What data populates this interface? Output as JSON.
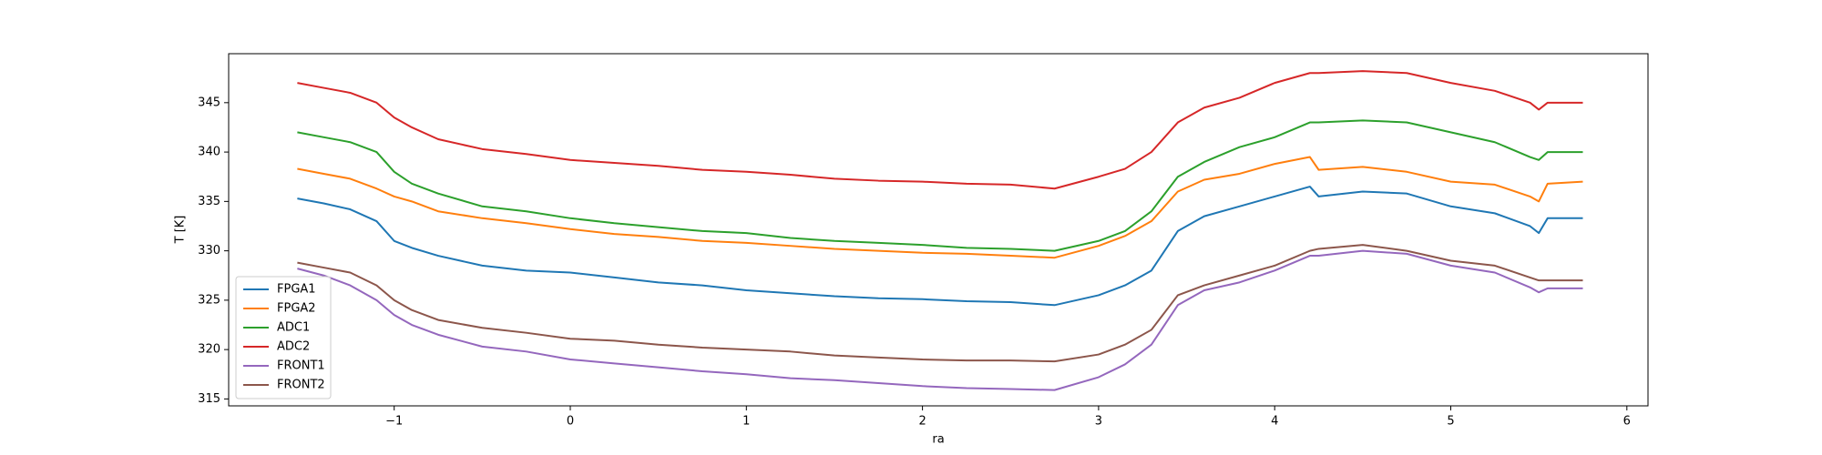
{
  "chart_data": {
    "type": "line",
    "xlabel": "ra",
    "ylabel": "T [K]",
    "x": [
      -1.55,
      -1.4,
      -1.25,
      -1.1,
      -1.0,
      -0.9,
      -0.75,
      -0.5,
      -0.25,
      0,
      0.25,
      0.5,
      0.75,
      1,
      1.25,
      1.5,
      1.75,
      2,
      2.25,
      2.5,
      2.75,
      3,
      3.15,
      3.3,
      3.45,
      3.6,
      3.8,
      4,
      4.2,
      4.25,
      4.5,
      4.75,
      5,
      5.25,
      5.45,
      5.5,
      5.55,
      5.75
    ],
    "series": [
      {
        "name": "FPGA1",
        "color": "#1f77b4",
        "values": [
          335.3,
          334.8,
          334.2,
          333,
          331,
          330.3,
          329.5,
          328.5,
          328,
          327.8,
          327.3,
          326.8,
          326.5,
          326,
          325.7,
          325.4,
          325.2,
          325.1,
          324.9,
          324.8,
          324.5,
          325.5,
          326.5,
          328,
          332,
          333.5,
          334.5,
          335.5,
          336.5,
          335.5,
          336,
          335.8,
          334.5,
          333.8,
          332.5,
          331.8,
          333.3,
          333.3
        ]
      },
      {
        "name": "FPGA2",
        "color": "#ff7f0e",
        "values": [
          338.3,
          337.8,
          337.3,
          336.3,
          335.5,
          335,
          334,
          333.3,
          332.8,
          332.2,
          331.7,
          331.4,
          331,
          330.8,
          330.5,
          330.2,
          330,
          329.8,
          329.7,
          329.5,
          329.3,
          330.5,
          331.5,
          333,
          336,
          337.2,
          337.8,
          338.8,
          339.5,
          338.2,
          338.5,
          338,
          337,
          336.7,
          335.5,
          335,
          336.8,
          337
        ]
      },
      {
        "name": "ADC1",
        "color": "#2ca02c",
        "values": [
          342,
          341.5,
          341,
          340,
          338,
          336.8,
          335.8,
          334.5,
          334,
          333.3,
          332.8,
          332.4,
          332,
          331.8,
          331.3,
          331,
          330.8,
          330.6,
          330.3,
          330.2,
          330,
          331,
          332,
          334,
          337.5,
          339,
          340.5,
          341.5,
          343,
          343,
          343.2,
          343,
          342,
          341,
          339.5,
          339.2,
          340,
          340
        ]
      },
      {
        "name": "ADC2",
        "color": "#d62728",
        "values": [
          347,
          346.5,
          346,
          345,
          343.5,
          342.5,
          341.3,
          340.3,
          339.8,
          339.2,
          338.9,
          338.6,
          338.2,
          338,
          337.7,
          337.3,
          337.1,
          337,
          336.8,
          336.7,
          336.3,
          337.5,
          338.3,
          340,
          343,
          344.5,
          345.5,
          347,
          348,
          348,
          348.2,
          348,
          347,
          346.2,
          345,
          344.3,
          345,
          345
        ]
      },
      {
        "name": "FRONT1",
        "color": "#9467bd",
        "values": [
          328.2,
          327.5,
          326.5,
          325,
          323.5,
          322.5,
          321.5,
          320.3,
          319.8,
          319,
          318.6,
          318.2,
          317.8,
          317.5,
          317.1,
          316.9,
          316.6,
          316.3,
          316.1,
          316,
          315.9,
          317.2,
          318.5,
          320.5,
          324.5,
          326,
          326.8,
          328,
          329.5,
          329.5,
          330,
          329.7,
          328.5,
          327.8,
          326.3,
          325.8,
          326.2,
          326.2
        ]
      },
      {
        "name": "FRONT2",
        "color": "#8c564b",
        "values": [
          328.8,
          328.3,
          327.8,
          326.5,
          325,
          324,
          323,
          322.2,
          321.7,
          321.1,
          320.9,
          320.5,
          320.2,
          320,
          319.8,
          319.4,
          319.2,
          319,
          318.9,
          318.9,
          318.8,
          319.5,
          320.5,
          322,
          325.5,
          326.5,
          327.5,
          328.5,
          330,
          330.2,
          330.6,
          330,
          329,
          328.5,
          327.3,
          327,
          327,
          327
        ]
      }
    ],
    "xlim": [
      -1.94,
      6.12
    ],
    "xticks": [
      {
        "value": -1,
        "label": "−1"
      },
      0,
      1,
      2,
      3,
      4,
      5,
      6
    ],
    "ylim": [
      314.3,
      349.96
    ],
    "yticks": [
      315,
      320,
      325,
      330,
      335,
      340,
      345
    ],
    "legend": "lower left"
  }
}
